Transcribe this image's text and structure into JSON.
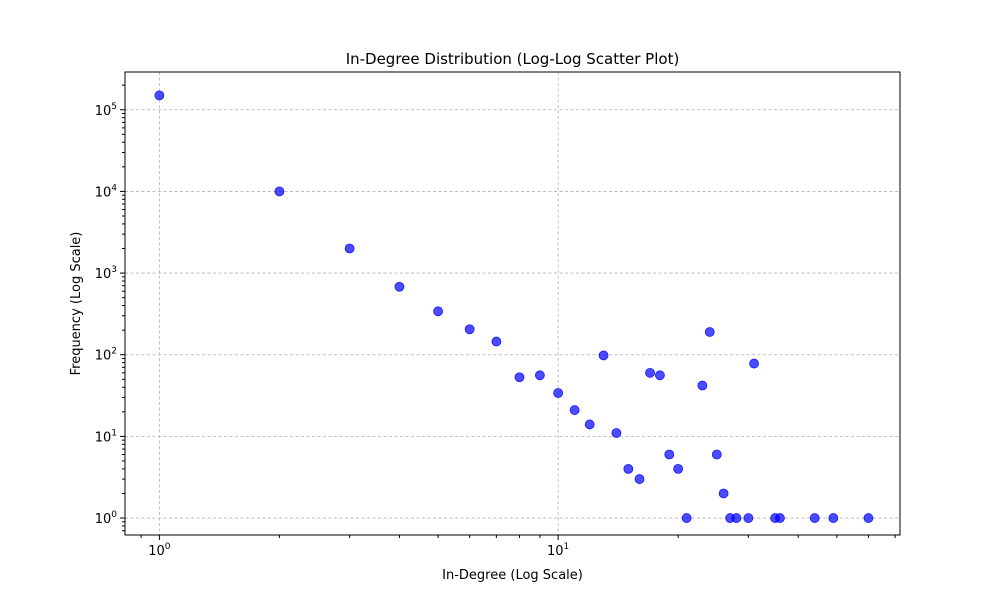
{
  "chart_data": {
    "type": "scatter",
    "title": "In-Degree Distribution (Log-Log Scatter Plot)",
    "xlabel": "In-Degree (Log Scale)",
    "ylabel": "Frequency (Log Scale)",
    "xscale": "log",
    "yscale": "log",
    "xlim": [
      0.82,
      72
    ],
    "ylim": [
      0.62,
      290000
    ],
    "grid": true,
    "marker_color": "#0000ff",
    "marker_alpha": 0.7,
    "x_major_ticks": [
      {
        "value": 1,
        "base": "10",
        "exp": "0"
      },
      {
        "value": 10,
        "base": "10",
        "exp": "1"
      }
    ],
    "y_major_ticks": [
      {
        "value": 1,
        "base": "10",
        "exp": "0"
      },
      {
        "value": 10,
        "base": "10",
        "exp": "1"
      },
      {
        "value": 100,
        "base": "10",
        "exp": "2"
      },
      {
        "value": 1000,
        "base": "10",
        "exp": "3"
      },
      {
        "value": 10000,
        "base": "10",
        "exp": "4"
      },
      {
        "value": 100000,
        "base": "10",
        "exp": "5"
      }
    ],
    "points": [
      {
        "x": 1,
        "y": 150000
      },
      {
        "x": 2,
        "y": 10000
      },
      {
        "x": 3,
        "y": 2000
      },
      {
        "x": 4,
        "y": 680
      },
      {
        "x": 5,
        "y": 340
      },
      {
        "x": 6,
        "y": 205
      },
      {
        "x": 7,
        "y": 145
      },
      {
        "x": 8,
        "y": 53
      },
      {
        "x": 9,
        "y": 56
      },
      {
        "x": 10,
        "y": 34
      },
      {
        "x": 11,
        "y": 21
      },
      {
        "x": 12,
        "y": 14
      },
      {
        "x": 13,
        "y": 98
      },
      {
        "x": 14,
        "y": 11
      },
      {
        "x": 15,
        "y": 4
      },
      {
        "x": 16,
        "y": 3
      },
      {
        "x": 17,
        "y": 60
      },
      {
        "x": 18,
        "y": 56
      },
      {
        "x": 19,
        "y": 6
      },
      {
        "x": 20,
        "y": 4
      },
      {
        "x": 21,
        "y": 1
      },
      {
        "x": 23,
        "y": 42
      },
      {
        "x": 24,
        "y": 190
      },
      {
        "x": 25,
        "y": 6
      },
      {
        "x": 26,
        "y": 2
      },
      {
        "x": 27,
        "y": 1
      },
      {
        "x": 28,
        "y": 1
      },
      {
        "x": 30,
        "y": 1
      },
      {
        "x": 31,
        "y": 78
      },
      {
        "x": 35,
        "y": 1
      },
      {
        "x": 36,
        "y": 1
      },
      {
        "x": 44,
        "y": 1
      },
      {
        "x": 49,
        "y": 1
      },
      {
        "x": 60,
        "y": 1
      }
    ]
  }
}
